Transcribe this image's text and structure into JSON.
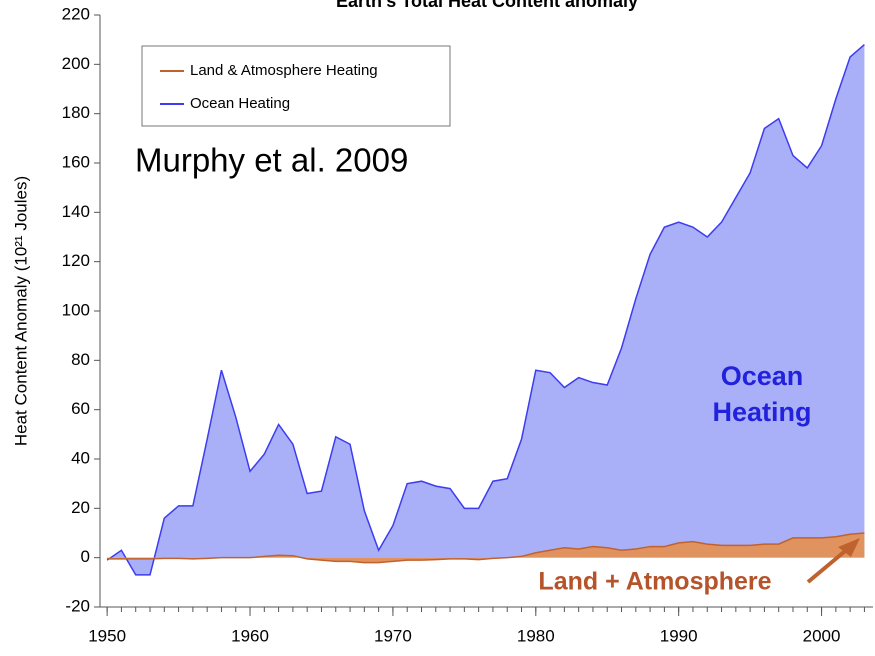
{
  "chart_data": {
    "type": "area",
    "title": "Earth's Total Heat Content anomaly",
    "ylabel": "Heat Content Anomaly (10²¹ Joules)",
    "x": [
      1950,
      1951,
      1952,
      1953,
      1954,
      1955,
      1956,
      1957,
      1958,
      1959,
      1960,
      1961,
      1962,
      1963,
      1964,
      1965,
      1966,
      1967,
      1968,
      1969,
      1970,
      1971,
      1972,
      1973,
      1974,
      1975,
      1976,
      1977,
      1978,
      1979,
      1980,
      1981,
      1982,
      1983,
      1984,
      1985,
      1986,
      1987,
      1988,
      1989,
      1990,
      1991,
      1992,
      1993,
      1994,
      1995,
      1996,
      1997,
      1998,
      1999,
      2000,
      2001,
      2002,
      2003
    ],
    "series": [
      {
        "name": "Ocean Heating",
        "color": "#3c3cf0",
        "fill": "#aab0f8",
        "values": [
          -1,
          3,
          -7,
          -7,
          16,
          21,
          21,
          48,
          76,
          57,
          35,
          42,
          54,
          46,
          26,
          27,
          49,
          46,
          19,
          3,
          13,
          30,
          31,
          29,
          28,
          20,
          20,
          31,
          32,
          48,
          76,
          75,
          69,
          73,
          71,
          70,
          85,
          105,
          123,
          134,
          136,
          134,
          130,
          136,
          146,
          156,
          174,
          178,
          163,
          158,
          167,
          186,
          203,
          208
        ]
      },
      {
        "name": "Land & Atmosphere Heating",
        "color": "#c0622e",
        "fill": "#e0935e",
        "values": [
          -0.5,
          -0.5,
          -0.5,
          -0.5,
          -0.3,
          -0.3,
          -0.5,
          -0.3,
          0,
          0,
          0,
          0.5,
          1,
          0.8,
          -0.5,
          -1,
          -1.5,
          -1.5,
          -2,
          -2,
          -1.5,
          -1,
          -1,
          -0.8,
          -0.5,
          -0.5,
          -0.8,
          -0.3,
          0,
          0.5,
          2,
          3,
          4,
          3.5,
          4.5,
          4,
          3,
          3.5,
          4.5,
          4.5,
          6,
          6.5,
          5.5,
          5,
          5,
          5,
          5.5,
          5.5,
          8,
          8,
          8,
          8.5,
          9.5,
          10
        ]
      }
    ],
    "legend_order": [
      1,
      0
    ],
    "legend": "upper left",
    "xlim": [
      1949.5,
      2003.6
    ],
    "xticks": [
      1950,
      1960,
      1970,
      1980,
      1990,
      2000
    ],
    "ylim": [
      -20,
      220
    ],
    "yticks": [
      -20,
      0,
      20,
      40,
      60,
      80,
      100,
      120,
      140,
      160,
      180,
      200,
      220
    ],
    "annotations": {
      "citation": "Murphy et al. 2009",
      "ocean": [
        "Ocean",
        "Heating"
      ],
      "land": "Land + Atmosphere"
    }
  }
}
